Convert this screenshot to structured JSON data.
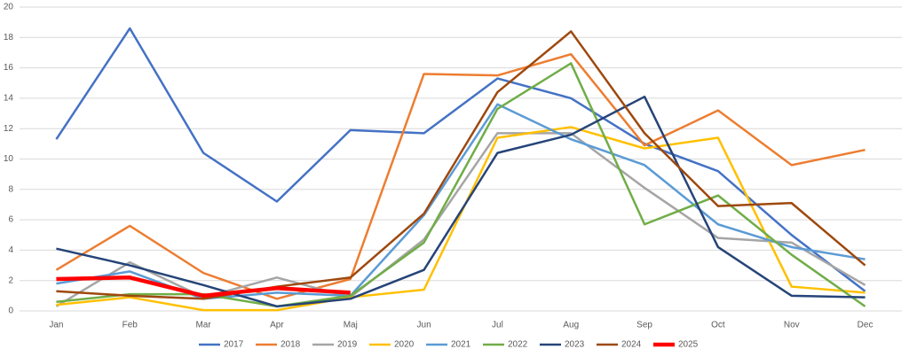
{
  "chart_data": {
    "type": "line",
    "categories": [
      "Jan",
      "Feb",
      "Mar",
      "Apr",
      "Maj",
      "Jun",
      "Jul",
      "Aug",
      "Sep",
      "Oct",
      "Nov",
      "Dec"
    ],
    "series": [
      {
        "name": "2017",
        "color": "#4472c4",
        "values": [
          11.3,
          18.6,
          10.4,
          7.2,
          11.9,
          11.7,
          15.3,
          14.0,
          11.0,
          9.2,
          5.0,
          1.3
        ]
      },
      {
        "name": "2018",
        "color": "#ed7d31",
        "values": [
          2.7,
          5.6,
          2.5,
          0.8,
          2.1,
          15.6,
          15.5,
          16.9,
          10.9,
          13.2,
          9.6,
          10.6
        ]
      },
      {
        "name": "2019",
        "color": "#a5a5a5",
        "values": [
          0.3,
          3.2,
          0.9,
          2.2,
          0.9,
          4.7,
          11.7,
          11.7,
          8.1,
          4.8,
          4.5,
          1.7
        ]
      },
      {
        "name": "2020",
        "color": "#ffc000",
        "values": [
          0.4,
          0.9,
          0.05,
          0.05,
          0.9,
          1.4,
          11.4,
          12.1,
          10.7,
          11.4,
          1.6,
          1.2
        ]
      },
      {
        "name": "2021",
        "color": "#5b9bd5",
        "values": [
          1.8,
          2.6,
          0.8,
          1.2,
          1.0,
          6.3,
          13.6,
          11.3,
          9.6,
          5.7,
          4.2,
          3.4
        ]
      },
      {
        "name": "2022",
        "color": "#70ad47",
        "values": [
          0.6,
          1.1,
          1.1,
          0.3,
          1.0,
          4.5,
          13.3,
          16.3,
          5.7,
          7.6,
          3.7,
          0.3
        ]
      },
      {
        "name": "2023",
        "color": "#264478",
        "values": [
          4.1,
          3.0,
          1.7,
          0.3,
          0.8,
          2.7,
          10.4,
          11.6,
          14.1,
          4.2,
          1.0,
          0.9
        ]
      },
      {
        "name": "2024",
        "color": "#9e480e",
        "values": [
          1.3,
          1.0,
          0.8,
          1.6,
          2.2,
          6.4,
          14.4,
          18.4,
          11.7,
          6.9,
          7.1,
          3.0
        ]
      },
      {
        "name": "2025",
        "color": "#ff0000",
        "values": [
          2.1,
          2.2,
          1.0,
          1.5,
          1.2,
          null,
          null,
          null,
          null,
          null,
          null,
          null
        ]
      }
    ],
    "ylim": [
      0,
      20
    ],
    "yticks": [
      0,
      2,
      4,
      6,
      8,
      10,
      12,
      14,
      16,
      18,
      20
    ],
    "grid": true,
    "legend": "bottom"
  }
}
